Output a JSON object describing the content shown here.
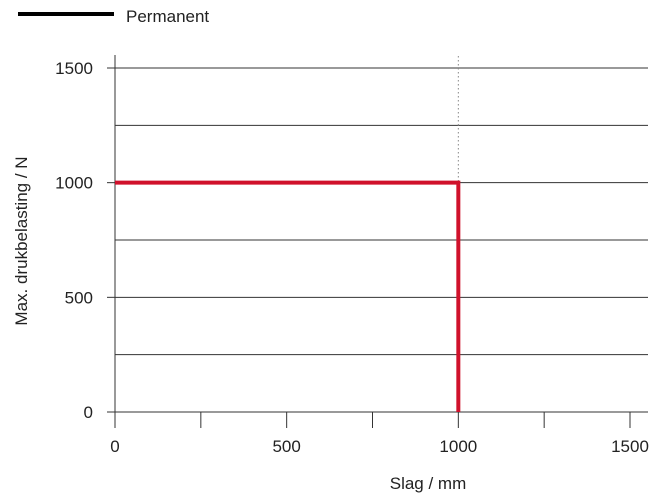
{
  "chart_data": {
    "type": "line",
    "title": "",
    "xlabel": "Slag / mm",
    "ylabel": "Max. drukbelasting / N",
    "xlim": [
      0,
      1500
    ],
    "ylim": [
      0,
      1500
    ],
    "x_ticks": [
      0,
      500,
      1000,
      1500
    ],
    "x_tick_labels": [
      "0",
      "500",
      "1000",
      "1500"
    ],
    "x_minor_ticks": [
      250,
      750,
      1250
    ],
    "y_ticks": [
      0,
      500,
      1000,
      1500
    ],
    "y_tick_labels": [
      "0",
      "500",
      "1000",
      "1500"
    ],
    "y_gridlines": [
      0,
      250,
      500,
      750,
      1000,
      1250,
      1500
    ],
    "grid": "horizontal",
    "legend": {
      "placement": "top-left",
      "entries": [
        {
          "label": "Permanent",
          "color": "#000000"
        }
      ]
    },
    "series": [
      {
        "color": "#d0112b",
        "x": [
          0,
          1000,
          1000
        ],
        "y": [
          1000,
          1000,
          0
        ]
      }
    ],
    "reference_lines": [
      {
        "orientation": "vertical",
        "x": 1000,
        "style": "dotted",
        "color": "#888888"
      }
    ]
  }
}
